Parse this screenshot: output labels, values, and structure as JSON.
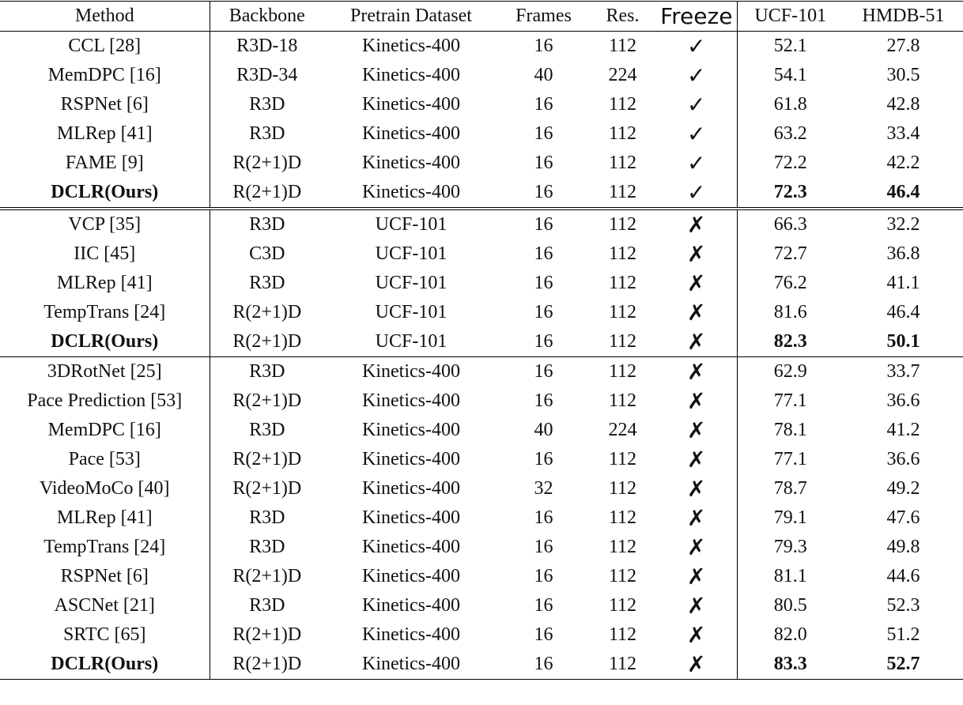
{
  "table": {
    "header": [
      "Method",
      "Backbone",
      "Pretrain Dataset",
      "Frames",
      "Res.",
      "Freeze",
      "UCF-101",
      "HMDB-51"
    ],
    "groups": [
      {
        "rows": [
          {
            "cells": [
              "CCL [28]",
              "R3D-18",
              "Kinetics-400",
              "16",
              "112",
              "✓",
              "52.1",
              "27.8"
            ]
          },
          {
            "cells": [
              "MemDPC [16]",
              "R3D-34",
              "Kinetics-400",
              "40",
              "224",
              "✓",
              "54.1",
              "30.5"
            ]
          },
          {
            "cells": [
              "RSPNet [6]",
              "R3D",
              "Kinetics-400",
              "16",
              "112",
              "✓",
              "61.8",
              "42.8"
            ]
          },
          {
            "cells": [
              "MLRep [41]",
              "R3D",
              "Kinetics-400",
              "16",
              "112",
              "✓",
              "63.2",
              "33.4"
            ]
          },
          {
            "cells": [
              "FAME [9]",
              "R(2+1)D",
              "Kinetics-400",
              "16",
              "112",
              "✓",
              "72.2",
              "42.2"
            ]
          },
          {
            "cells": [
              "DCLR(Ours)",
              "R(2+1)D",
              "Kinetics-400",
              "16",
              "112",
              "✓",
              "72.3",
              "46.4"
            ],
            "bold": true
          }
        ]
      },
      {
        "rows": [
          {
            "cells": [
              "VCP [35]",
              "R3D",
              "UCF-101",
              "16",
              "112",
              "✗",
              "66.3",
              "32.2"
            ]
          },
          {
            "cells": [
              "IIC [45]",
              "C3D",
              "UCF-101",
              "16",
              "112",
              "✗",
              "72.7",
              "36.8"
            ]
          },
          {
            "cells": [
              "MLRep [41]",
              "R3D",
              "UCF-101",
              "16",
              "112",
              "✗",
              "76.2",
              "41.1"
            ]
          },
          {
            "cells": [
              "TempTrans [24]",
              "R(2+1)D",
              "UCF-101",
              "16",
              "112",
              "✗",
              "81.6",
              "46.4"
            ]
          },
          {
            "cells": [
              "DCLR(Ours)",
              "R(2+1)D",
              "UCF-101",
              "16",
              "112",
              "✗",
              "82.3",
              "50.1"
            ],
            "bold": true
          }
        ]
      },
      {
        "rows": [
          {
            "cells": [
              "3DRotNet [25]",
              "R3D",
              "Kinetics-400",
              "16",
              "112",
              "✗",
              "62.9",
              "33.7"
            ]
          },
          {
            "cells": [
              "Pace Prediction [53]",
              "R(2+1)D",
              "Kinetics-400",
              "16",
              "112",
              "✗",
              "77.1",
              "36.6"
            ]
          },
          {
            "cells": [
              "MemDPC [16]",
              "R3D",
              "Kinetics-400",
              "40",
              "224",
              "✗",
              "78.1",
              "41.2"
            ]
          },
          {
            "cells": [
              "Pace [53]",
              "R(2+1)D",
              "Kinetics-400",
              "16",
              "112",
              "✗",
              "77.1",
              "36.6"
            ]
          },
          {
            "cells": [
              "VideoMoCo [40]",
              "R(2+1)D",
              "Kinetics-400",
              "32",
              "112",
              "✗",
              "78.7",
              "49.2"
            ]
          },
          {
            "cells": [
              "MLRep [41]",
              "R3D",
              "Kinetics-400",
              "16",
              "112",
              "✗",
              "79.1",
              "47.6"
            ]
          },
          {
            "cells": [
              "TempTrans [24]",
              "R3D",
              "Kinetics-400",
              "16",
              "112",
              "✗",
              "79.3",
              "49.8"
            ]
          },
          {
            "cells": [
              "RSPNet [6]",
              "R(2+1)D",
              "Kinetics-400",
              "16",
              "112",
              "✗",
              "81.1",
              "44.6"
            ]
          },
          {
            "cells": [
              "ASCNet [21]",
              "R3D",
              "Kinetics-400",
              "16",
              "112",
              "✗",
              "80.5",
              "52.3"
            ]
          },
          {
            "cells": [
              "SRTC [65]",
              "R(2+1)D",
              "Kinetics-400",
              "16",
              "112",
              "✗",
              "82.0",
              "51.2"
            ]
          },
          {
            "cells": [
              "DCLR(Ours)",
              "R(2+1)D",
              "Kinetics-400",
              "16",
              "112",
              "✗",
              "83.3",
              "52.7"
            ],
            "bold": true
          }
        ]
      }
    ]
  }
}
